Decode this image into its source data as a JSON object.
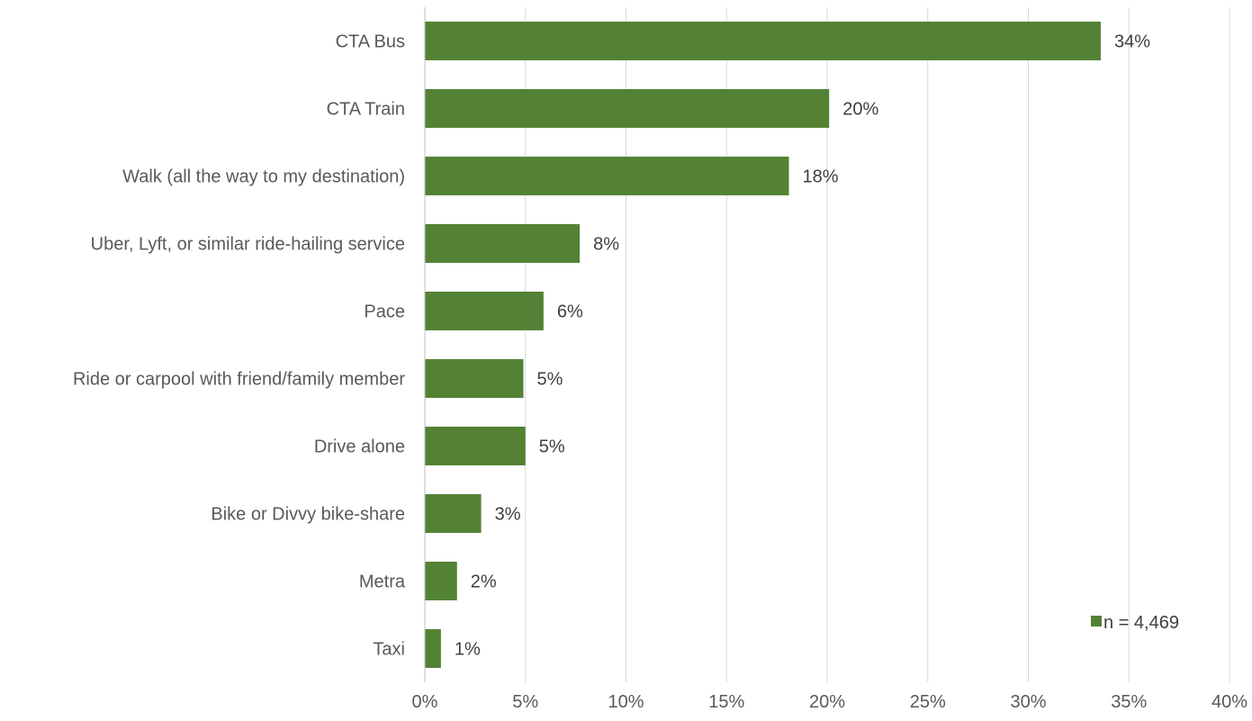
{
  "chart_data": {
    "type": "bar",
    "orientation": "horizontal",
    "categories": [
      "CTA Bus",
      "CTA Train",
      "Walk (all the way to my destination)",
      "Uber, Lyft, or similar ride-hailing service",
      "Pace",
      "Ride or carpool with friend/family member",
      "Drive alone",
      "Bike or Divvy bike-share",
      "Metra",
      "Taxi"
    ],
    "values": [
      33.6,
      20.1,
      18.1,
      7.7,
      5.9,
      4.9,
      5.0,
      2.8,
      1.6,
      0.8
    ],
    "data_labels": [
      "34%",
      "20%",
      "18%",
      "8%",
      "6%",
      "5%",
      "5%",
      "3%",
      "2%",
      "1%"
    ],
    "series": [
      {
        "name": "n = 4,469",
        "color": "#548235"
      }
    ],
    "xlim": [
      0,
      40
    ],
    "x_ticks": [
      0,
      5,
      10,
      15,
      20,
      25,
      30,
      35,
      40
    ],
    "x_tick_labels": [
      "0%",
      "5%",
      "10%",
      "15%",
      "20%",
      "25%",
      "30%",
      "35%",
      "40%"
    ],
    "grid": "vertical",
    "legend_position": "bottom-right",
    "title": "",
    "xlabel": "",
    "ylabel": "",
    "colors": {
      "bar": "#548235",
      "grid": "#d9d9d9",
      "axis": "#bfbfbf",
      "text": "#595959"
    }
  }
}
